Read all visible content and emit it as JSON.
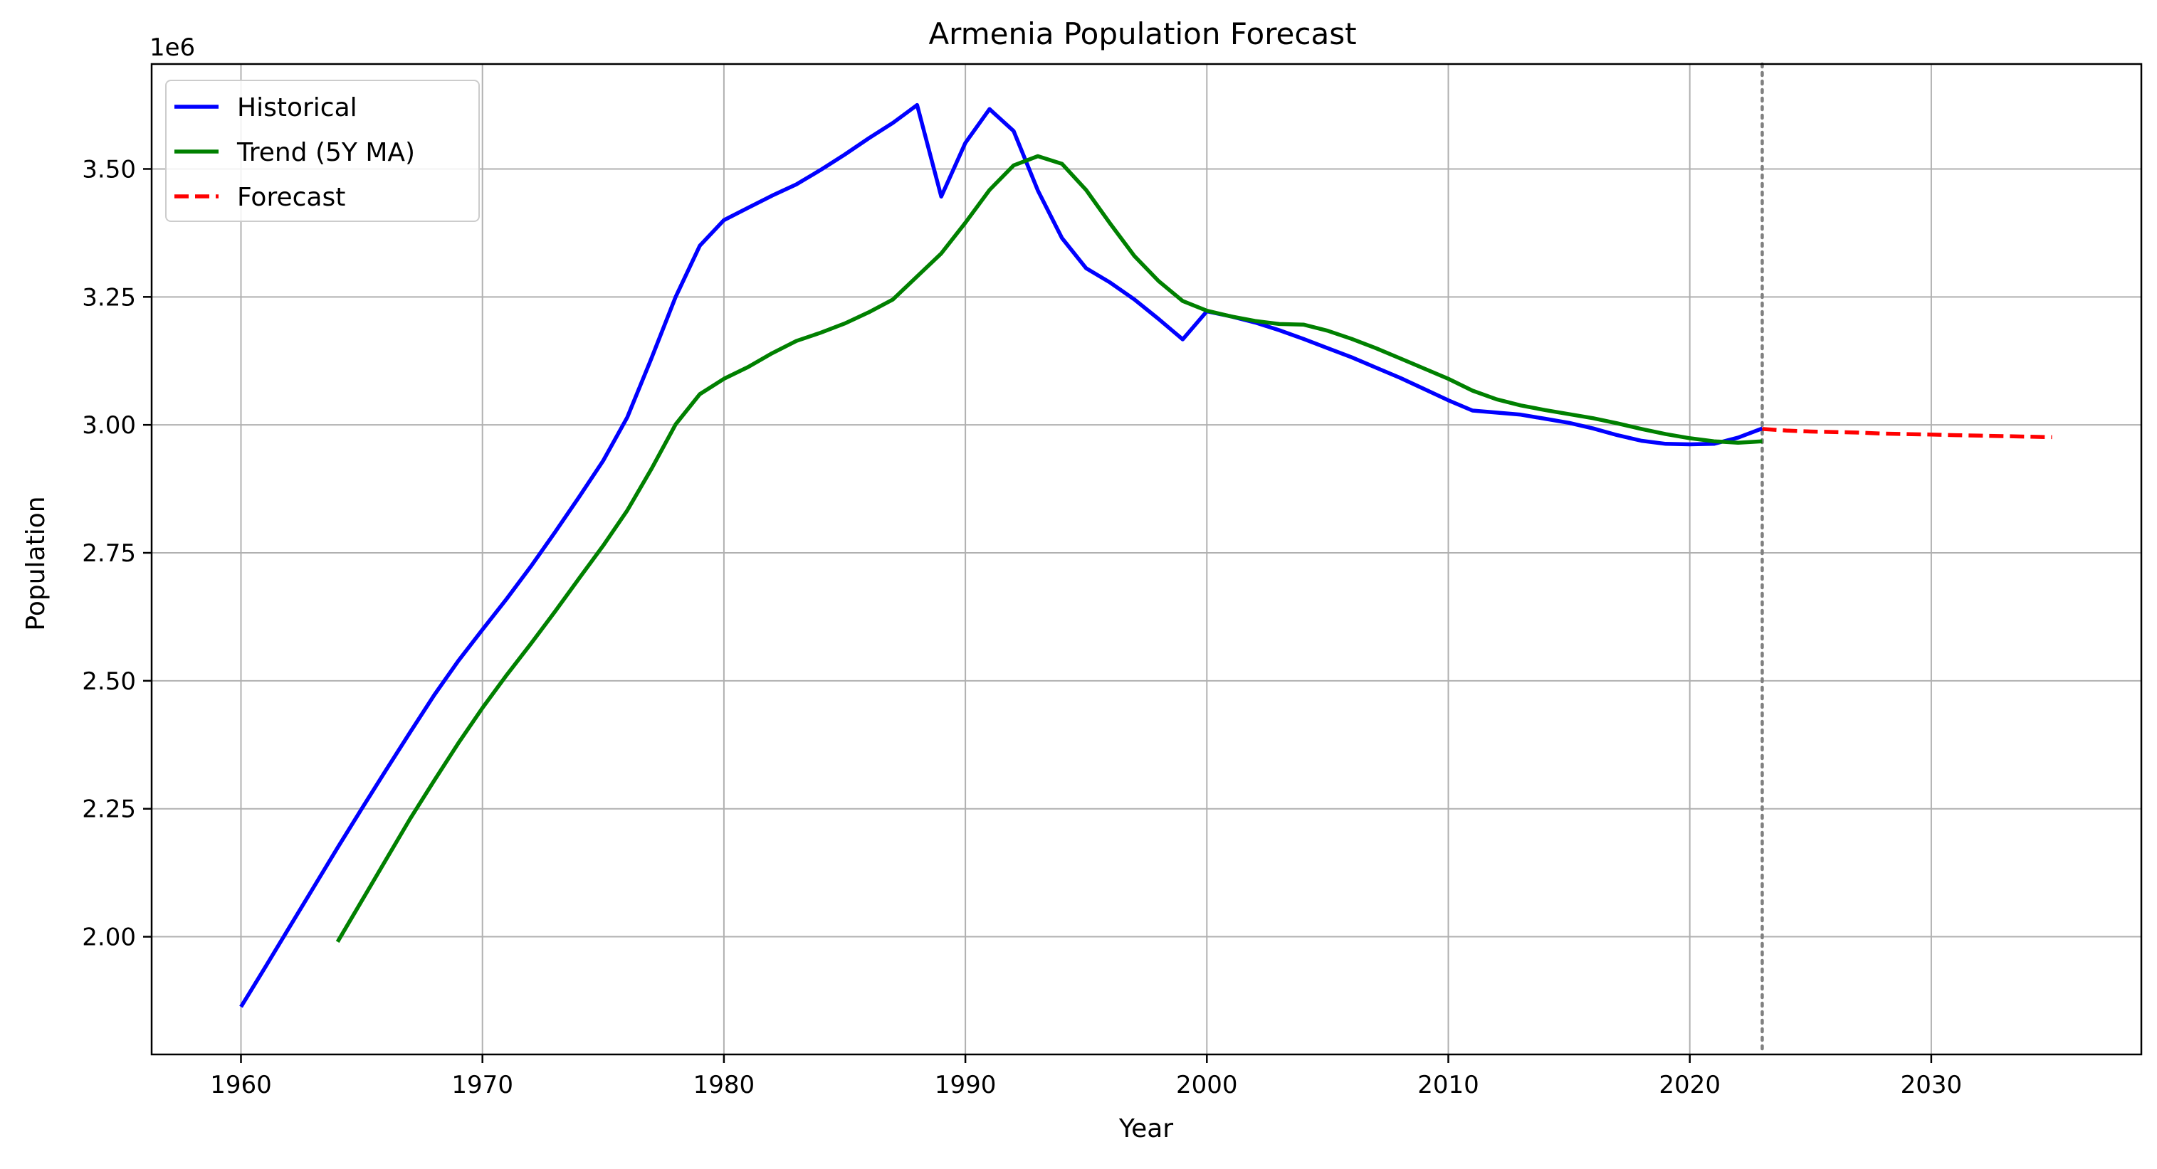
{
  "chart_data": {
    "type": "line",
    "title": "Armenia Population Forecast",
    "xlabel": "Year",
    "ylabel": "Population",
    "y_offset_label": "1e6",
    "y_multiplier": 1000000,
    "xlim": [
      1956.3,
      2038.7
    ],
    "ylim": [
      1.77,
      3.705
    ],
    "x_ticks": [
      1960,
      1970,
      1980,
      1990,
      2000,
      2010,
      2020,
      2030
    ],
    "y_ticks": [
      2.0,
      2.25,
      2.5,
      2.75,
      3.0,
      3.25,
      3.5
    ],
    "y_tick_labels": [
      "2.00",
      "2.25",
      "2.50",
      "2.75",
      "3.00",
      "3.25",
      "3.50"
    ],
    "grid": true,
    "legend_position": "top-left",
    "forecast_start_marker_x": 2023,
    "series": [
      {
        "name": "Historical",
        "color": "#0000ff",
        "style": "solid",
        "x": [
          1960,
          1961,
          1962,
          1963,
          1964,
          1965,
          1966,
          1967,
          1968,
          1969,
          1970,
          1971,
          1972,
          1973,
          1974,
          1975,
          1976,
          1977,
          1978,
          1979,
          1980,
          1981,
          1982,
          1983,
          1984,
          1985,
          1986,
          1987,
          1988,
          1989,
          1990,
          1991,
          1992,
          1993,
          1994,
          1995,
          1996,
          1997,
          1998,
          1999,
          2000,
          2001,
          2002,
          2003,
          2004,
          2005,
          2006,
          2007,
          2008,
          2009,
          2010,
          2011,
          2012,
          2013,
          2014,
          2015,
          2016,
          2017,
          2018,
          2019,
          2020,
          2021,
          2022,
          2023
        ],
        "y": [
          1.863,
          1.94,
          2.018,
          2.096,
          2.174,
          2.25,
          2.325,
          2.399,
          2.472,
          2.539,
          2.6,
          2.66,
          2.723,
          2.79,
          2.859,
          2.93,
          3.015,
          3.13,
          3.25,
          3.35,
          3.4,
          3.424,
          3.448,
          3.47,
          3.498,
          3.528,
          3.56,
          3.59,
          3.625,
          3.446,
          3.551,
          3.617,
          3.574,
          3.458,
          3.365,
          3.306,
          3.278,
          3.245,
          3.207,
          3.167,
          3.222,
          3.212,
          3.2,
          3.185,
          3.168,
          3.15,
          3.132,
          3.112,
          3.092,
          3.07,
          3.048,
          3.028,
          3.024,
          3.02,
          3.012,
          3.004,
          2.993,
          2.98,
          2.969,
          2.963,
          2.962,
          2.963,
          2.975,
          2.993
        ]
      },
      {
        "name": "Trend (5Y MA)",
        "color": "#008000",
        "style": "solid",
        "x": [
          1964,
          1965,
          1966,
          1967,
          1968,
          1969,
          1970,
          1971,
          1972,
          1973,
          1974,
          1975,
          1976,
          1977,
          1978,
          1979,
          1980,
          1981,
          1982,
          1983,
          1984,
          1985,
          1986,
          1987,
          1988,
          1989,
          1990,
          1991,
          1992,
          1993,
          1994,
          1995,
          1996,
          1997,
          1998,
          1999,
          2000,
          2001,
          2002,
          2003,
          2004,
          2005,
          2006,
          2007,
          2008,
          2009,
          2010,
          2011,
          2012,
          2013,
          2014,
          2015,
          2016,
          2017,
          2018,
          2019,
          2020,
          2021,
          2022,
          2023
        ],
        "y": [
          1.99,
          2.07,
          2.15,
          2.23,
          2.305,
          2.378,
          2.447,
          2.511,
          2.572,
          2.635,
          2.7,
          2.764,
          2.833,
          2.914,
          3.001,
          3.06,
          3.09,
          3.113,
          3.14,
          3.164,
          3.18,
          3.198,
          3.22,
          3.245,
          3.29,
          3.335,
          3.395,
          3.459,
          3.507,
          3.525,
          3.51,
          3.459,
          3.393,
          3.33,
          3.281,
          3.242,
          3.223,
          3.212,
          3.203,
          3.197,
          3.196,
          3.184,
          3.168,
          3.15,
          3.13,
          3.11,
          3.09,
          3.067,
          3.05,
          3.038,
          3.029,
          3.021,
          3.013,
          3.003,
          2.992,
          2.982,
          2.974,
          2.968,
          2.965,
          2.968
        ]
      },
      {
        "name": "Forecast",
        "color": "#ff0000",
        "style": "dashed",
        "x": [
          2023,
          2024,
          2025,
          2026,
          2027,
          2028,
          2029,
          2030,
          2031,
          2032,
          2033,
          2034,
          2035
        ],
        "y": [
          2.992,
          2.989,
          2.987,
          2.986,
          2.985,
          2.983,
          2.982,
          2.981,
          2.98,
          2.979,
          2.978,
          2.977,
          2.976
        ]
      }
    ]
  }
}
